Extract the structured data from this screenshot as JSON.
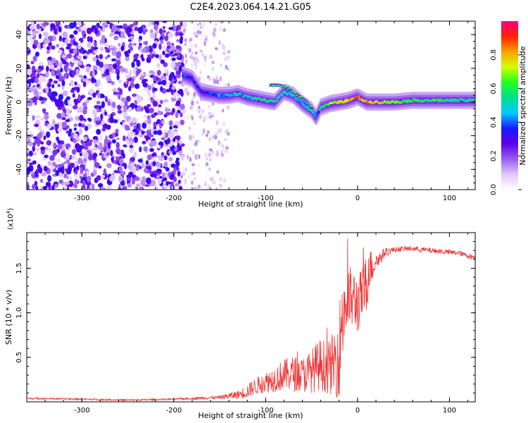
{
  "title": "C2E4.2023.064.14.21.G05",
  "chart_data": [
    {
      "type": "heatmap",
      "xlabel": "Height of straight line (km)",
      "ylabel": "Frequency (Hz)",
      "xlim": [
        -360,
        128
      ],
      "ylim": [
        -52,
        48
      ],
      "xticks": [
        -300,
        -200,
        -100,
        0,
        100
      ],
      "xtick_labels": [
        "-300",
        "-200",
        "-100",
        "0",
        "100"
      ],
      "yticks": [
        -40,
        -20,
        0,
        20,
        40
      ],
      "ytick_labels": [
        "-40",
        "-20",
        "0",
        "20",
        "40"
      ],
      "colorbar": {
        "label": "Normalized spectral amplitude",
        "range": [
          0,
          1
        ],
        "ticks": [
          0.0,
          0.2,
          0.4,
          0.6,
          0.8
        ],
        "tick_labels": [
          "0.0",
          "0.2",
          "0.4",
          "0.6",
          "0.8"
        ],
        "colormap": [
          "#ffffff",
          "#e0c8f8",
          "#9a5cf0",
          "#5a00e8",
          "#1a1aff",
          "#00c8ff",
          "#00e090",
          "#20ff20",
          "#d0ff00",
          "#ffa000",
          "#ff2000",
          "#ff0080"
        ]
      },
      "noise_region": {
        "x": [
          -360,
          -190
        ],
        "y": [
          -52,
          48
        ],
        "amplitude": [
          0.05,
          0.35
        ]
      },
      "sparse_region": {
        "x": [
          -190,
          -140
        ],
        "y": [
          -52,
          48
        ],
        "amplitude": [
          0.02,
          0.15
        ]
      },
      "ridge": {
        "x": [
          -190,
          -180,
          -170,
          -160,
          -150,
          -140,
          -130,
          -120,
          -110,
          -100,
          -90,
          -80,
          -70,
          -60,
          -50,
          -45,
          -40,
          -35,
          -30,
          -20,
          -10,
          -5,
          0,
          10,
          20,
          40,
          60,
          80,
          100,
          128
        ],
        "freq": [
          16,
          14,
          6,
          5,
          4,
          4,
          5,
          3,
          2,
          1,
          0,
          6,
          4,
          -1,
          -5,
          -9,
          -3,
          -2,
          -1,
          0,
          1,
          2,
          3,
          0,
          0,
          0,
          1,
          1,
          1,
          1
        ],
        "amplitude": [
          0.35,
          0.35,
          0.3,
          0.35,
          0.4,
          0.45,
          0.5,
          0.45,
          0.5,
          0.55,
          0.5,
          0.55,
          0.5,
          0.45,
          0.55,
          0.35,
          0.5,
          0.6,
          0.7,
          0.75,
          0.8,
          0.85,
          0.85,
          0.8,
          0.75,
          0.65,
          0.6,
          0.6,
          0.55,
          0.55
        ]
      },
      "secondary_ridge": {
        "x": [
          -95,
          -85,
          -75,
          -65,
          -55,
          -48
        ],
        "freq": [
          10,
          10,
          8,
          4,
          0,
          -5
        ]
      }
    },
    {
      "type": "line",
      "xlabel": "Height of straight line (km)",
      "ylabel": "SNR (10 * v/v)",
      "y_multiplier": "(x10",
      "y_multiplier_exponent": "4",
      "y_multiplier_close": ")",
      "xlim": [
        -360,
        128
      ],
      "ylim": [
        0,
        1.9
      ],
      "xticks": [
        -300,
        -200,
        -100,
        0,
        100
      ],
      "xtick_labels": [
        "-300",
        "-200",
        "-100",
        "0",
        "100"
      ],
      "yticks": [
        0.5,
        1.0,
        1.5
      ],
      "ytick_labels": [
        "0.5",
        "1.0",
        "1.5"
      ],
      "color": "#ee3333",
      "series": [
        {
          "x": [
            -360,
            -300,
            -250,
            -200,
            -150,
            -130,
            -120,
            -110,
            -100,
            -90,
            -80,
            -70,
            -60,
            -50,
            -40,
            -30,
            -25,
            -20,
            -18,
            -15,
            -12,
            -10,
            -5,
            0,
            5,
            10,
            12,
            15,
            20,
            25,
            30,
            40,
            50,
            60,
            70,
            80,
            90,
            100,
            110,
            120,
            128
          ],
          "values": [
            0.04,
            0.03,
            0.02,
            0.03,
            0.05,
            0.08,
            0.12,
            0.18,
            0.22,
            0.26,
            0.3,
            0.32,
            0.3,
            0.35,
            0.42,
            0.38,
            0.45,
            0.55,
            0.85,
            1.05,
            1.1,
            1.15,
            1.15,
            1.1,
            1.2,
            1.3,
            1.55,
            1.5,
            1.58,
            1.62,
            1.68,
            1.71,
            1.72,
            1.72,
            1.71,
            1.7,
            1.69,
            1.68,
            1.67,
            1.64,
            1.62
          ],
          "noise": [
            0.01,
            0.01,
            0.01,
            0.01,
            0.02,
            0.05,
            0.08,
            0.1,
            0.12,
            0.15,
            0.18,
            0.2,
            0.2,
            0.25,
            0.3,
            0.3,
            0.4,
            0.5,
            0.6,
            0.5,
            0.45,
            0.4,
            0.35,
            0.35,
            0.3,
            0.4,
            0.3,
            0.2,
            0.1,
            0.08,
            0.05,
            0.03,
            0.03,
            0.03,
            0.03,
            0.03,
            0.03,
            0.03,
            0.03,
            0.03,
            0.03
          ]
        }
      ]
    }
  ]
}
